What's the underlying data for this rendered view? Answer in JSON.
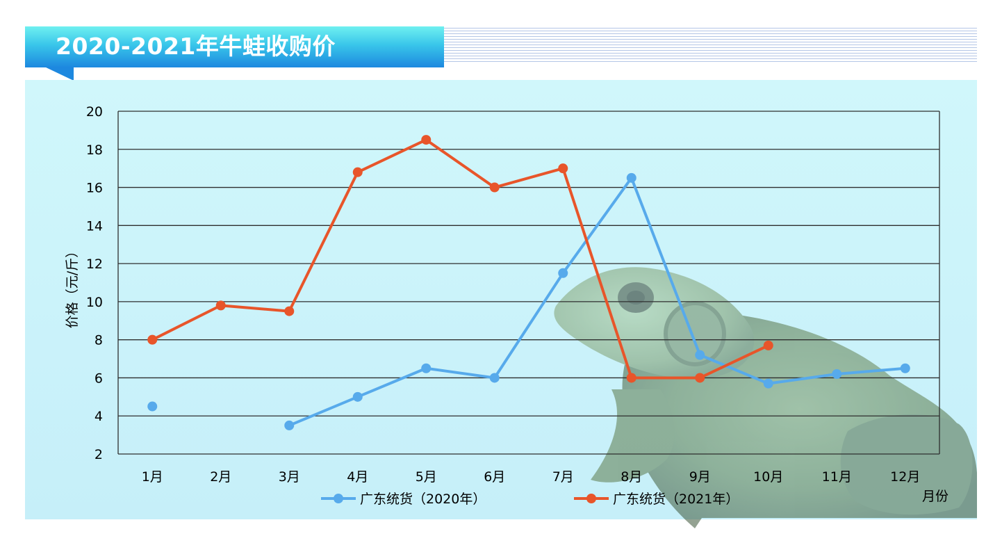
{
  "chart_data": {
    "type": "line",
    "title": "2020-2021年牛蛙收购价",
    "xlabel": "月份",
    "ylabel": "价格（元/斤）",
    "categories": [
      "1月",
      "2月",
      "3月",
      "4月",
      "5月",
      "6月",
      "7月",
      "8月",
      "9月",
      "10月",
      "11月",
      "12月"
    ],
    "ylim": [
      2,
      20
    ],
    "yticks": [
      2,
      4,
      6,
      8,
      10,
      12,
      14,
      16,
      18,
      20
    ],
    "grid": true,
    "legend_position": "bottom",
    "series": [
      {
        "name": "广东统货（2020年）",
        "color": "#57aaeb",
        "values": [
          4.5,
          null,
          3.5,
          5.0,
          6.5,
          6.0,
          11.5,
          16.5,
          7.2,
          5.7,
          6.2,
          6.5
        ]
      },
      {
        "name": "广东统货（2021年）",
        "color": "#e8552a",
        "values": [
          8.0,
          9.8,
          9.5,
          16.8,
          18.5,
          16.0,
          17.0,
          6.0,
          6.0,
          7.7,
          null,
          null
        ]
      }
    ]
  }
}
